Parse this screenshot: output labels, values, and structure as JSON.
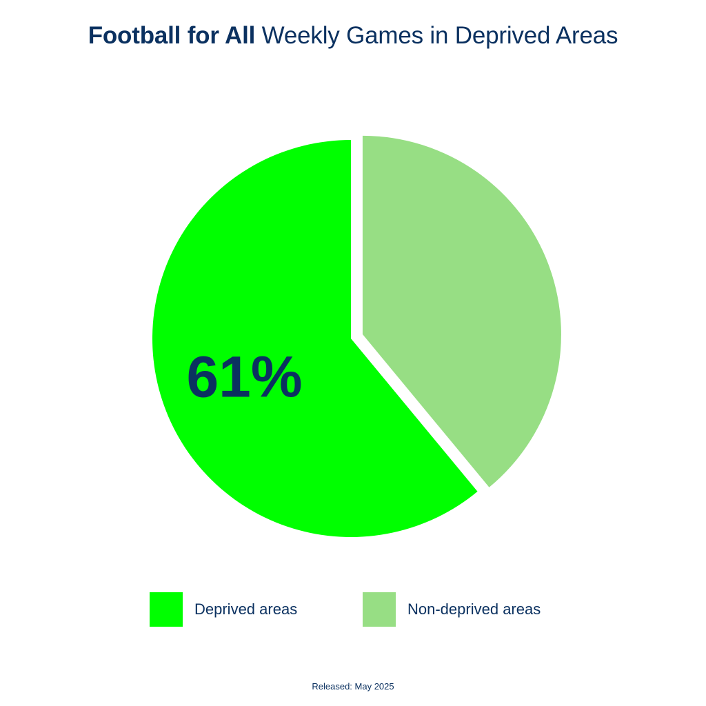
{
  "header": {
    "title_bold": "Football for All",
    "title_rest": "Weekly Games in Deprived Areas"
  },
  "footer": {
    "release": "Released: May 2025"
  },
  "colors": {
    "text": "#0b3160",
    "deprived": "#00ff00",
    "non_deprived": "#97de84",
    "background": "#ffffff"
  },
  "chart_data": {
    "type": "pie",
    "title": "Football for All Weekly Games in Deprived Areas",
    "slices": [
      {
        "name": "Deprived areas",
        "value": 61,
        "label": "61%",
        "color": "#00ff00",
        "exploded": false
      },
      {
        "name": "Non-deprived areas",
        "value": 39,
        "label": "",
        "color": "#97de84",
        "exploded": true
      }
    ],
    "start_angle": "12 o'clock",
    "direction": "counter-clockwise",
    "legend_placement": "bottom"
  },
  "legend": {
    "items": [
      {
        "label": "Deprived areas",
        "color": "#00ff00"
      },
      {
        "label": "Non-deprived areas",
        "color": "#97de84"
      }
    ]
  }
}
